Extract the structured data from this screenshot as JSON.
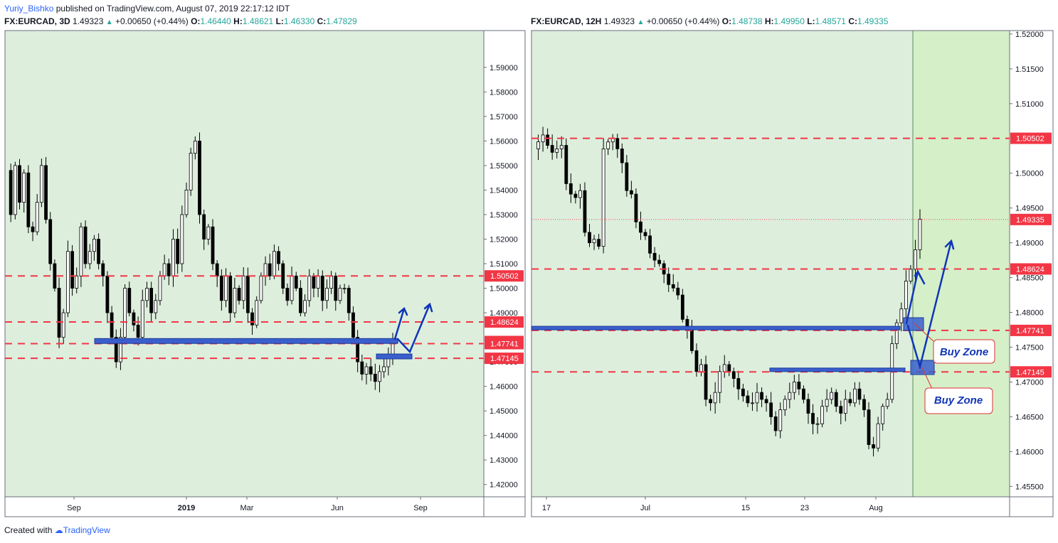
{
  "header": {
    "author": "Yuriy_Bishko",
    "published_text": "published on TradingView.com, August 07, 2019 22:17:12 IDT"
  },
  "left_chart": {
    "symbol_tf": "FX:EURCAD, 3D",
    "last": "1.49323",
    "change": "+0.00650 (+0.44%)",
    "o_label": "O:",
    "o": "1.46440",
    "h_label": "H:",
    "h": "1.48621",
    "l_label": "L:",
    "l": "1.46330",
    "c_label": "C:",
    "c": "1.47829"
  },
  "right_chart": {
    "symbol_tf": "FX:EURCAD, 12H",
    "last": "1.49323",
    "change": "+0.00650 (+0.44%)",
    "o_label": "O:",
    "o": "1.48738",
    "h_label": "H:",
    "h": "1.49950",
    "l_label": "L:",
    "l": "1.48571",
    "c_label": "C:",
    "c": "1.49335"
  },
  "footer": {
    "created_with": "Created with",
    "brand": "TradingView"
  },
  "colors": {
    "panel_bg": "#ddeedd",
    "highlight_bg": "#d5efc9",
    "dashed_level": "#f23645",
    "zone_blue": "#3a5fcd",
    "arrow_blue": "#1035b8",
    "price_tag": "#f23645",
    "change_up": "#26a69a"
  },
  "chart_data": [
    {
      "type": "candlestick",
      "symbol": "FX:EURCAD",
      "timeframe": "3D",
      "x_ticks": [
        "Sep",
        "2019",
        "Mar",
        "Jun",
        "Sep"
      ],
      "y_ticks": [
        "1.59000",
        "1.58000",
        "1.57000",
        "1.56000",
        "1.55000",
        "1.54000",
        "1.53000",
        "1.52000",
        "1.51000",
        "1.50000",
        "1.49000",
        "1.47000",
        "1.46000",
        "1.45000",
        "1.44000",
        "1.43000",
        "1.42000"
      ],
      "ylim": [
        1.415,
        1.605
      ],
      "price_tags": [
        {
          "label": "1.50502",
          "value": 1.50502
        },
        {
          "label": "1.48624",
          "value": 1.48624
        },
        {
          "label": "1.47829",
          "value": 1.47829
        },
        {
          "label": "1.47741",
          "value": 1.47741
        },
        {
          "label": "1.47145",
          "value": 1.47145
        }
      ],
      "dashed_levels": [
        1.50502,
        1.48624,
        1.47741,
        1.47145
      ],
      "support_zones": [
        {
          "from": 1.4775,
          "to": 1.4795
        },
        {
          "from": 1.4712,
          "to": 1.4732
        }
      ],
      "series": [
        1.548,
        1.53,
        1.55,
        1.535,
        1.547,
        1.525,
        1.523,
        1.535,
        1.55,
        1.528,
        1.51,
        1.5,
        1.48,
        1.49,
        1.515,
        1.5,
        1.505,
        1.525,
        1.51,
        1.515,
        1.52,
        1.51,
        1.505,
        1.49,
        1.48,
        1.47,
        1.48,
        1.5,
        1.49,
        1.485,
        1.48,
        1.495,
        1.5,
        1.49,
        1.495,
        1.505,
        1.51,
        1.505,
        1.52,
        1.51,
        1.53,
        1.54,
        1.555,
        1.56,
        1.53,
        1.52,
        1.525,
        1.51,
        1.505,
        1.495,
        1.505,
        1.49,
        1.5,
        1.495,
        1.505,
        1.49,
        1.485,
        1.495,
        1.505,
        1.51,
        1.505,
        1.515,
        1.51,
        1.5,
        1.495,
        1.505,
        1.5,
        1.49,
        1.495,
        1.505,
        1.5,
        1.505,
        1.495,
        1.5,
        1.505,
        1.495,
        1.5,
        1.5,
        1.49,
        1.48,
        1.47,
        1.465,
        1.468,
        1.465,
        1.462,
        1.466,
        1.468,
        1.473,
        1.478
      ]
    },
    {
      "type": "candlestick",
      "symbol": "FX:EURCAD",
      "timeframe": "12H",
      "x_ticks": [
        "17",
        "Jul",
        "15",
        "23",
        "Aug"
      ],
      "y_ticks": [
        "1.52000",
        "1.51500",
        "1.51000",
        "1.50000",
        "1.49500",
        "1.49000",
        "1.48500",
        "1.48000",
        "1.47500",
        "1.47000",
        "1.46500",
        "1.46000",
        "1.45500"
      ],
      "ylim": [
        1.4535,
        1.5205
      ],
      "price_tags": [
        {
          "label": "1.50502",
          "value": 1.50502
        },
        {
          "label": "1.49335",
          "value": 1.49335
        },
        {
          "label": "1.48624",
          "value": 1.48624
        },
        {
          "label": "1.47741",
          "value": 1.47741
        },
        {
          "label": "1.47145",
          "value": 1.47145
        }
      ],
      "dashed_levels": [
        1.50502,
        1.48624,
        1.47741,
        1.47145
      ],
      "support_zones": [
        {
          "from": 1.4772,
          "to": 1.4778
        },
        {
          "from": 1.4713,
          "to": 1.4718
        }
      ],
      "buy_zones": [
        {
          "label": "Buy Zone",
          "value_range": [
            1.4775,
            1.4795
          ]
        },
        {
          "label": "Buy Zone",
          "value_range": [
            1.4716,
            1.4735
          ]
        }
      ],
      "series": [
        1.5035,
        1.5045,
        1.5055,
        1.504,
        1.503,
        1.5035,
        1.504,
        1.4985,
        1.497,
        1.4965,
        1.4975,
        1.4915,
        1.49,
        1.4905,
        1.4895,
        1.5035,
        1.5045,
        1.505,
        1.5035,
        1.5015,
        1.4975,
        1.497,
        1.493,
        1.4915,
        1.491,
        1.4885,
        1.4875,
        1.487,
        1.4855,
        1.484,
        1.4835,
        1.4825,
        1.479,
        1.4775,
        1.4745,
        1.4715,
        1.4725,
        1.4675,
        1.467,
        1.4685,
        1.4715,
        1.4725,
        1.4715,
        1.4705,
        1.469,
        1.468,
        1.467,
        1.467,
        1.4685,
        1.4675,
        1.467,
        1.465,
        1.463,
        1.466,
        1.4675,
        1.4685,
        1.47,
        1.469,
        1.4675,
        1.4655,
        1.464,
        1.464,
        1.4665,
        1.4675,
        1.4685,
        1.4665,
        1.4655,
        1.4675,
        1.467,
        1.469,
        1.4675,
        1.466,
        1.461,
        1.4605,
        1.464,
        1.4665,
        1.4675,
        1.4755,
        1.4785,
        1.4805,
        1.4845,
        1.4862,
        1.489,
        1.4934
      ]
    }
  ]
}
